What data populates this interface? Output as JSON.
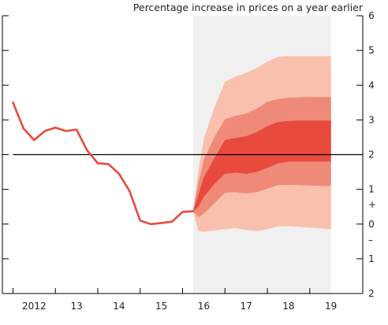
{
  "chart_data": {
    "type": "line",
    "title": "Percentage increase in prices on a year earlier",
    "xlabel": "",
    "ylabel": "",
    "x_tick_labels": [
      "2012",
      "13",
      "14",
      "15",
      "16",
      "17",
      "18",
      "19"
    ],
    "x_tick_values": [
      2012.0,
      2013.0,
      2014.0,
      2015.0,
      2016.0,
      2017.0,
      2018.0,
      2019.0
    ],
    "xlim": [
      2011.25,
      2019.75
    ],
    "ylim": [
      -2,
      6
    ],
    "y_tick_labels": [
      "6",
      "5",
      "4",
      "3",
      "2",
      "1",
      "0",
      "1",
      "2"
    ],
    "y_tick_values": [
      6,
      5,
      4,
      3,
      2,
      1,
      0,
      -1,
      -2
    ],
    "y_sign_labels": {
      "plus": "+",
      "minus": "–"
    },
    "target_line": 2,
    "forecast_start": 2015.75,
    "forecast_end": 2019.0,
    "series": [
      {
        "x": [
          2011.5,
          2011.75,
          2012.0,
          2012.25,
          2012.5,
          2012.75,
          2013.0,
          2013.25,
          2013.5,
          2013.75,
          2014.0,
          2014.25,
          2014.5,
          2014.75,
          2015.0,
          2015.25,
          2015.5,
          2015.75
        ],
        "values": [
          3.5,
          2.75,
          2.42,
          2.68,
          2.78,
          2.68,
          2.72,
          2.12,
          1.75,
          1.73,
          1.45,
          0.95,
          0.1,
          0.0,
          0.03,
          0.07,
          0.35,
          0.37
        ]
      }
    ],
    "fan_x": [
      2015.75,
      2015.875,
      2016.0,
      2016.25,
      2016.5,
      2016.75,
      2017.0,
      2017.25,
      2017.5,
      2017.75,
      2018.0,
      2018.25,
      2018.5,
      2018.75,
      2019.0
    ],
    "fan_bands": [
      {
        "level": "outer",
        "color": "#f8c0ad",
        "upper": [
          0.38,
          1.55,
          2.45,
          3.35,
          4.1,
          4.25,
          4.35,
          4.5,
          4.68,
          4.82,
          4.84,
          4.84,
          4.84,
          4.84,
          4.84
        ],
        "lower": [
          0.37,
          -0.2,
          -0.22,
          -0.18,
          -0.15,
          -0.12,
          -0.17,
          -0.2,
          -0.15,
          -0.06,
          -0.06,
          -0.08,
          -0.1,
          -0.12,
          -0.15
        ]
      },
      {
        "level": "middle",
        "color": "#ef8a78",
        "upper": [
          0.38,
          1.2,
          1.85,
          2.5,
          3.02,
          3.12,
          3.18,
          3.32,
          3.52,
          3.6,
          3.64,
          3.65,
          3.66,
          3.66,
          3.66
        ],
        "lower": [
          0.37,
          0.2,
          0.3,
          0.6,
          0.9,
          0.92,
          0.88,
          0.92,
          1.02,
          1.12,
          1.13,
          1.12,
          1.11,
          1.1,
          1.1
        ]
      },
      {
        "level": "inner",
        "color": "#e84a3d",
        "upper": [
          0.38,
          0.85,
          1.35,
          1.9,
          2.42,
          2.48,
          2.53,
          2.65,
          2.82,
          2.94,
          2.97,
          2.98,
          2.98,
          2.98,
          2.98
        ],
        "lower": [
          0.37,
          0.5,
          0.78,
          1.15,
          1.45,
          1.48,
          1.45,
          1.5,
          1.62,
          1.75,
          1.8,
          1.8,
          1.8,
          1.8,
          1.8
        ]
      }
    ],
    "colors": {
      "line": "#e8493e",
      "target_line": "#000000",
      "forecast_shade": "#f0f0f0",
      "axis": "#000000"
    },
    "grid": false
  }
}
